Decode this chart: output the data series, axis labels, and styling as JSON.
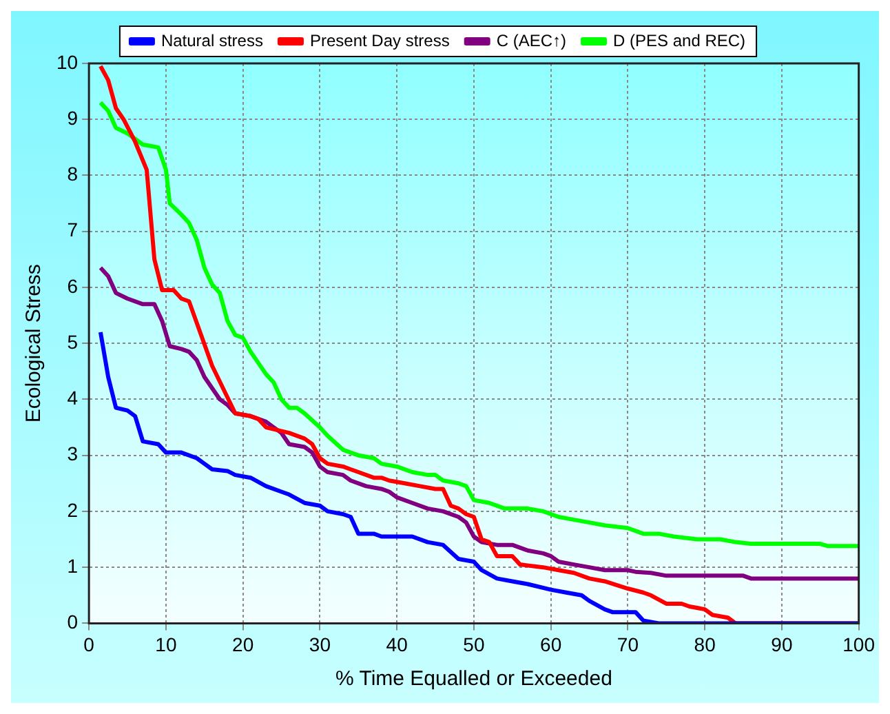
{
  "chart_data": {
    "type": "line",
    "xlabel": "% Time Equalled or Exceeded",
    "ylabel": "Ecological Stress",
    "xlim": [
      0,
      100
    ],
    "ylim": [
      0,
      10
    ],
    "xticks": [
      0,
      10,
      20,
      30,
      40,
      50,
      60,
      70,
      80,
      90,
      100
    ],
    "yticks": [
      0,
      1,
      2,
      3,
      4,
      5,
      6,
      7,
      8,
      9,
      10
    ],
    "grid": true,
    "legend": "top",
    "marker": "none",
    "line_style": "solid",
    "series": [
      {
        "name": "Natural stress",
        "color": "#0000ff",
        "x": [
          1.5,
          2.5,
          3.5,
          5,
          6,
          7,
          9,
          10,
          12,
          14,
          15,
          16,
          18,
          19,
          21,
          23,
          25,
          26,
          28,
          30,
          31,
          33,
          34,
          35,
          37,
          38,
          42,
          44,
          46,
          48,
          50,
          51,
          53,
          55,
          57,
          60,
          62,
          64,
          65,
          67,
          68,
          71,
          72,
          74,
          100
        ],
        "values": [
          5.2,
          4.4,
          3.85,
          3.8,
          3.7,
          3.25,
          3.2,
          3.05,
          3.05,
          2.95,
          2.85,
          2.75,
          2.72,
          2.65,
          2.6,
          2.45,
          2.35,
          2.3,
          2.15,
          2.1,
          2.0,
          1.95,
          1.9,
          1.6,
          1.6,
          1.55,
          1.55,
          1.45,
          1.4,
          1.15,
          1.1,
          0.95,
          0.8,
          0.75,
          0.7,
          0.6,
          0.55,
          0.5,
          0.4,
          0.25,
          0.2,
          0.2,
          0.05,
          0,
          0
        ]
      },
      {
        "name": "Present Day stress",
        "color": "#ff0000",
        "x": [
          1.5,
          2.5,
          3.5,
          4.5,
          6,
          7.5,
          8.5,
          9.5,
          11,
          12,
          13,
          16,
          19,
          21,
          22,
          23,
          26,
          28,
          29,
          30,
          31,
          33,
          35,
          37,
          38,
          39,
          41,
          43,
          45,
          46,
          47,
          48,
          49,
          50,
          51,
          52,
          53,
          55,
          56,
          59,
          61,
          63,
          65,
          67,
          70,
          72,
          73,
          75,
          77,
          78,
          80,
          81,
          83,
          84,
          100
        ],
        "values": [
          9.95,
          9.7,
          9.2,
          9.0,
          8.6,
          8.1,
          6.5,
          5.95,
          5.95,
          5.8,
          5.75,
          4.6,
          3.75,
          3.7,
          3.65,
          3.5,
          3.4,
          3.3,
          3.2,
          2.95,
          2.85,
          2.8,
          2.7,
          2.6,
          2.6,
          2.55,
          2.5,
          2.45,
          2.4,
          2.4,
          2.1,
          2.05,
          1.95,
          1.9,
          1.5,
          1.45,
          1.2,
          1.2,
          1.05,
          1.0,
          0.95,
          0.9,
          0.8,
          0.75,
          0.62,
          0.55,
          0.5,
          0.35,
          0.35,
          0.3,
          0.25,
          0.15,
          0.1,
          0,
          0
        ]
      },
      {
        "name": "C (AEC↑)",
        "color": "#800080",
        "x": [
          1.5,
          2.5,
          3.5,
          5,
          7,
          8.5,
          9.5,
          10.5,
          12,
          13,
          14,
          15,
          16,
          17,
          18,
          19,
          21,
          23,
          24,
          25,
          26,
          28,
          29,
          30,
          31,
          33,
          34,
          36,
          38,
          39,
          40,
          42,
          44,
          46,
          48,
          49,
          50,
          51,
          53,
          55,
          57,
          59,
          60,
          61,
          63,
          65,
          67,
          70,
          71,
          73,
          75,
          85,
          86,
          100
        ],
        "values": [
          6.35,
          6.2,
          5.9,
          5.8,
          5.7,
          5.7,
          5.4,
          4.95,
          4.9,
          4.85,
          4.7,
          4.4,
          4.2,
          4.0,
          3.9,
          3.75,
          3.7,
          3.6,
          3.5,
          3.4,
          3.2,
          3.15,
          3.05,
          2.8,
          2.7,
          2.65,
          2.55,
          2.45,
          2.4,
          2.35,
          2.25,
          2.15,
          2.05,
          2.0,
          1.9,
          1.8,
          1.55,
          1.45,
          1.4,
          1.4,
          1.3,
          1.25,
          1.2,
          1.1,
          1.05,
          1.0,
          0.95,
          0.95,
          0.92,
          0.9,
          0.85,
          0.85,
          0.8,
          0.8
        ]
      },
      {
        "name": "D (PES and REC)",
        "color": "#00ff00",
        "x": [
          1.5,
          2.5,
          3.5,
          5,
          7,
          9,
          10,
          10.5,
          12,
          13,
          14,
          15,
          16,
          17,
          18,
          19,
          20,
          21,
          22,
          23,
          24,
          25,
          26,
          27,
          28,
          30,
          31,
          33,
          35,
          37,
          38,
          40,
          42,
          44,
          45,
          46,
          48,
          49,
          50,
          52,
          54,
          57,
          59,
          61,
          63,
          65,
          67,
          70,
          72,
          74,
          76,
          79,
          82,
          84,
          86,
          95,
          96,
          100
        ],
        "values": [
          9.3,
          9.15,
          8.85,
          8.75,
          8.55,
          8.5,
          8.1,
          7.5,
          7.3,
          7.15,
          6.85,
          6.35,
          6.05,
          5.9,
          5.4,
          5.15,
          5.1,
          4.85,
          4.65,
          4.45,
          4.3,
          4.0,
          3.85,
          3.85,
          3.75,
          3.5,
          3.35,
          3.1,
          3.0,
          2.95,
          2.85,
          2.8,
          2.7,
          2.65,
          2.65,
          2.55,
          2.5,
          2.45,
          2.2,
          2.15,
          2.05,
          2.05,
          2.0,
          1.9,
          1.85,
          1.8,
          1.75,
          1.7,
          1.6,
          1.6,
          1.55,
          1.5,
          1.5,
          1.45,
          1.42,
          1.42,
          1.38,
          1.38
        ]
      }
    ]
  }
}
